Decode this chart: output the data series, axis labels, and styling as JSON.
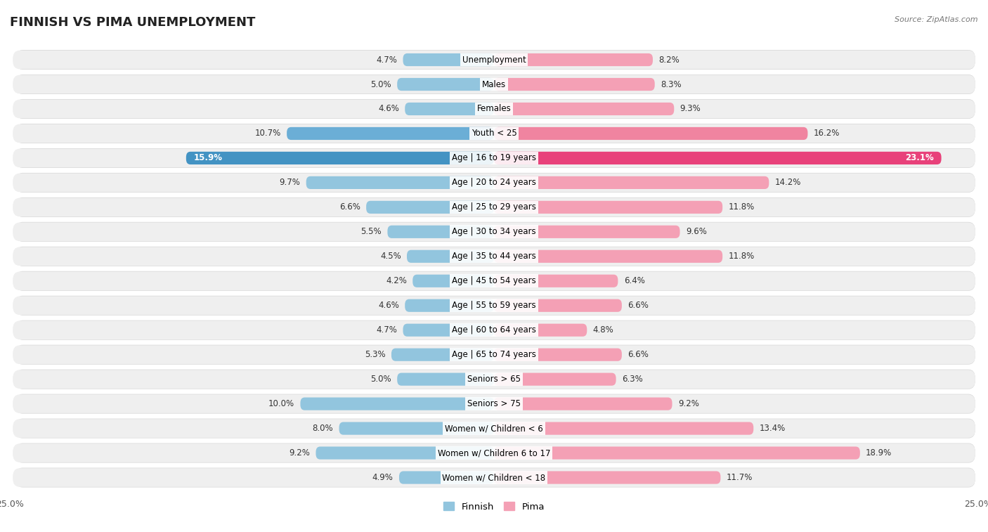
{
  "title": "FINNISH VS PIMA UNEMPLOYMENT",
  "source": "Source: ZipAtlas.com",
  "categories": [
    "Unemployment",
    "Males",
    "Females",
    "Youth < 25",
    "Age | 16 to 19 years",
    "Age | 20 to 24 years",
    "Age | 25 to 29 years",
    "Age | 30 to 34 years",
    "Age | 35 to 44 years",
    "Age | 45 to 54 years",
    "Age | 55 to 59 years",
    "Age | 60 to 64 years",
    "Age | 65 to 74 years",
    "Seniors > 65",
    "Seniors > 75",
    "Women w/ Children < 6",
    "Women w/ Children 6 to 17",
    "Women w/ Children < 18"
  ],
  "finnish": [
    4.7,
    5.0,
    4.6,
    10.7,
    15.9,
    9.7,
    6.6,
    5.5,
    4.5,
    4.2,
    4.6,
    4.7,
    5.3,
    5.0,
    10.0,
    8.0,
    9.2,
    4.9
  ],
  "pima": [
    8.2,
    8.3,
    9.3,
    16.2,
    23.1,
    14.2,
    11.8,
    9.6,
    11.8,
    6.4,
    6.6,
    4.8,
    6.6,
    6.3,
    9.2,
    13.4,
    18.9,
    11.7
  ],
  "finnish_color": "#92c5de",
  "pima_color": "#f4a0b5",
  "highlight_finnish_color": "#4393c3",
  "highlight_pima_color": "#e8417a",
  "highlight_rows_finnish": [
    4
  ],
  "highlight_rows_pima": [
    4
  ],
  "medium_rows": [
    3
  ],
  "medium_finnish_color": "#6baed6",
  "medium_pima_color": "#f084a0",
  "axis_limit": 25.0,
  "bar_height": 0.52,
  "row_bg_color": "#efefef",
  "row_shadow_color": "#d8d8d8",
  "title_fontsize": 13,
  "label_fontsize": 8.5,
  "value_fontsize": 8.5,
  "source_fontsize": 8
}
